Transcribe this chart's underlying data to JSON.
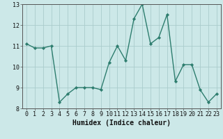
{
  "x": [
    0,
    1,
    2,
    3,
    4,
    5,
    6,
    7,
    8,
    9,
    10,
    11,
    12,
    13,
    14,
    15,
    16,
    17,
    18,
    19,
    20,
    21,
    22,
    23
  ],
  "y": [
    11.1,
    10.9,
    10.9,
    11.0,
    8.3,
    8.7,
    9.0,
    9.0,
    9.0,
    8.9,
    10.2,
    11.0,
    10.3,
    12.3,
    13.0,
    11.1,
    11.4,
    12.5,
    9.3,
    10.1,
    10.1,
    8.9,
    8.3,
    8.7
  ],
  "line_color": "#2d7d6e",
  "marker": "D",
  "marker_size": 2.2,
  "bg_color": "#cce8e8",
  "grid_color": "#aacccc",
  "xlabel": "Humidex (Indice chaleur)",
  "ylim": [
    8,
    13
  ],
  "xlim": [
    -0.5,
    23.5
  ],
  "yticks": [
    8,
    9,
    10,
    11,
    12,
    13
  ],
  "xticks": [
    0,
    1,
    2,
    3,
    4,
    5,
    6,
    7,
    8,
    9,
    10,
    11,
    12,
    13,
    14,
    15,
    16,
    17,
    18,
    19,
    20,
    21,
    22,
    23
  ],
  "axis_fontsize": 6.5,
  "tick_fontsize": 6.0,
  "line_width": 1.0,
  "xlabel_fontsize": 7.0
}
